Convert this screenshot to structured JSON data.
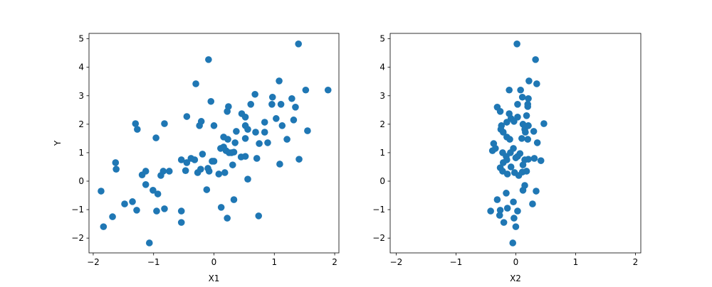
{
  "chart_data": [
    {
      "type": "scatter",
      "xlabel": "X1",
      "ylabel": "Y",
      "color": "#1f77b4",
      "xlim": [
        -2.07,
        2.07
      ],
      "ylim": [
        -2.52,
        5.19
      ],
      "xticks": [
        {
          "value": -2,
          "label": "−2"
        },
        {
          "value": -1,
          "label": "−1"
        },
        0,
        1,
        2
      ],
      "yticks": [
        {
          "value": -2,
          "label": "−2"
        },
        {
          "value": -1,
          "label": "−1"
        },
        0,
        1,
        2,
        3,
        4,
        5
      ],
      "x": [
        -1.87,
        -1.83,
        -1.68,
        -1.63,
        -1.62,
        -1.48,
        -1.35,
        -1.3,
        -1.27,
        -1.28,
        -1.19,
        -1.13,
        -1.13,
        -1.07,
        -1.01,
        -0.96,
        -0.93,
        -0.95,
        -0.88,
        -0.84,
        -0.82,
        -0.82,
        -0.74,
        -0.54,
        -0.54,
        -0.54,
        -0.47,
        -0.45,
        -0.45,
        -0.38,
        -0.32,
        -0.3,
        -0.27,
        -0.24,
        -0.22,
        -0.21,
        -0.19,
        -0.12,
        -0.1,
        -0.09,
        -0.08,
        -0.05,
        -0.03,
        0.0,
        0.0,
        0.08,
        0.11,
        0.12,
        0.16,
        0.16,
        0.18,
        0.2,
        0.22,
        0.23,
        0.22,
        0.24,
        0.25,
        0.29,
        0.31,
        0.33,
        0.33,
        0.35,
        0.37,
        0.45,
        0.46,
        0.52,
        0.52,
        0.52,
        0.56,
        0.52,
        0.56,
        0.61,
        0.68,
        0.69,
        0.71,
        0.74,
        0.75,
        0.84,
        0.84,
        0.89,
        0.96,
        0.97,
        1.03,
        1.08,
        1.09,
        1.11,
        1.13,
        1.21,
        1.29,
        1.32,
        1.35,
        1.4,
        1.41,
        1.52,
        1.55,
        1.89
      ],
      "values": [
        -0.35,
        -1.6,
        -1.25,
        0.65,
        0.42,
        -0.8,
        -0.72,
        2.02,
        1.82,
        -1.02,
        0.22,
        0.35,
        -0.12,
        -2.17,
        -0.32,
        1.52,
        -0.45,
        -1.05,
        0.2,
        0.35,
        2.02,
        -0.97,
        0.35,
        -1.05,
        -1.45,
        0.75,
        0.37,
        2.27,
        0.65,
        0.8,
        0.75,
        3.42,
        0.3,
        1.95,
        0.42,
        2.1,
        0.95,
        -0.3,
        0.45,
        4.27,
        0.35,
        2.8,
        0.7,
        0.7,
        1.95,
        0.25,
        1.15,
        -0.92,
        1.55,
        1.2,
        0.3,
        1.07,
        2.45,
        1.47,
        -1.3,
        2.62,
        1.0,
        1.0,
        0.57,
        1.02,
        -0.65,
        1.35,
        1.75,
        0.85,
        2.37,
        0.87,
        1.95,
        2.25,
        1.82,
        1.5,
        0.07,
        2.7,
        3.05,
        1.72,
        0.8,
        -1.22,
        1.32,
        2.07,
        1.72,
        1.35,
        2.7,
        2.95,
        2.2,
        3.52,
        0.6,
        2.7,
        1.95,
        1.47,
        2.9,
        2.15,
        2.6,
        4.82,
        0.77,
        3.2,
        1.77,
        3.2
      ]
    },
    {
      "type": "scatter",
      "xlabel": "X2",
      "color": "#1f77b4",
      "xlim": [
        -2.1,
        2.09
      ],
      "ylim": [
        -2.52,
        5.19
      ],
      "xticks": [
        {
          "value": -2,
          "label": "−2"
        },
        {
          "value": -1,
          "label": "−1"
        },
        0,
        1,
        2
      ],
      "yticks": [
        {
          "value": -2,
          "label": "−2"
        },
        {
          "value": -1,
          "label": "−1"
        },
        0,
        1,
        2,
        3,
        4,
        5
      ],
      "x": [
        0.02,
        0.33,
        0.35,
        0.22,
        -0.11,
        0.08,
        0.21,
        0.11,
        -0.31,
        0.2,
        0.2,
        0.03,
        -0.26,
        -0.11,
        0.18,
        0.03,
        -0.08,
        -0.03,
        0.47,
        -0.15,
        -0.24,
        -0.25,
        0.12,
        0.21,
        0.15,
        0.3,
        0.16,
        -0.21,
        -0.15,
        -0.1,
        0.1,
        0.2,
        0.36,
        -0.37,
        -0.34,
        -0.39,
        -0.04,
        -0.09,
        0.07,
        0.03,
        -0.22,
        -0.16,
        0.0,
        0.31,
        0.21,
        0.42,
        -0.15,
        -0.21,
        0.15,
        0.12,
        -0.26,
        -0.08,
        -0.22,
        0.18,
        0.11,
        -0.14,
        -0.02,
        0.05,
        0.15,
        0.12,
        0.34,
        -0.16,
        -0.31,
        -0.04,
        0.28,
        -0.14,
        -0.42,
        -0.26,
        0.03,
        -0.27,
        -0.03,
        -0.2,
        0.0,
        -0.05
      ],
      "values": [
        4.82,
        4.27,
        3.42,
        3.52,
        3.2,
        3.2,
        2.9,
        2.95,
        2.6,
        2.7,
        2.62,
        2.7,
        2.45,
        2.37,
        2.3,
        2.25,
        2.2,
        2.1,
        2.02,
        2.07,
        1.95,
        1.82,
        2.0,
        1.95,
        1.82,
        1.75,
        1.72,
        1.72,
        1.55,
        1.47,
        1.5,
        1.47,
        1.35,
        1.32,
        1.15,
        1.07,
        1.15,
        1.0,
        0.97,
        0.87,
        1.0,
        0.87,
        0.82,
        0.8,
        0.77,
        0.72,
        0.75,
        0.65,
        0.75,
        0.57,
        0.47,
        0.5,
        0.35,
        0.35,
        0.32,
        0.25,
        0.3,
        0.2,
        -0.15,
        -0.32,
        -0.35,
        -0.42,
        -0.65,
        -0.73,
        -0.8,
        -0.95,
        -1.05,
        -1.02,
        -1.05,
        -1.2,
        -1.3,
        -1.45,
        -1.6,
        -2.17
      ]
    }
  ]
}
